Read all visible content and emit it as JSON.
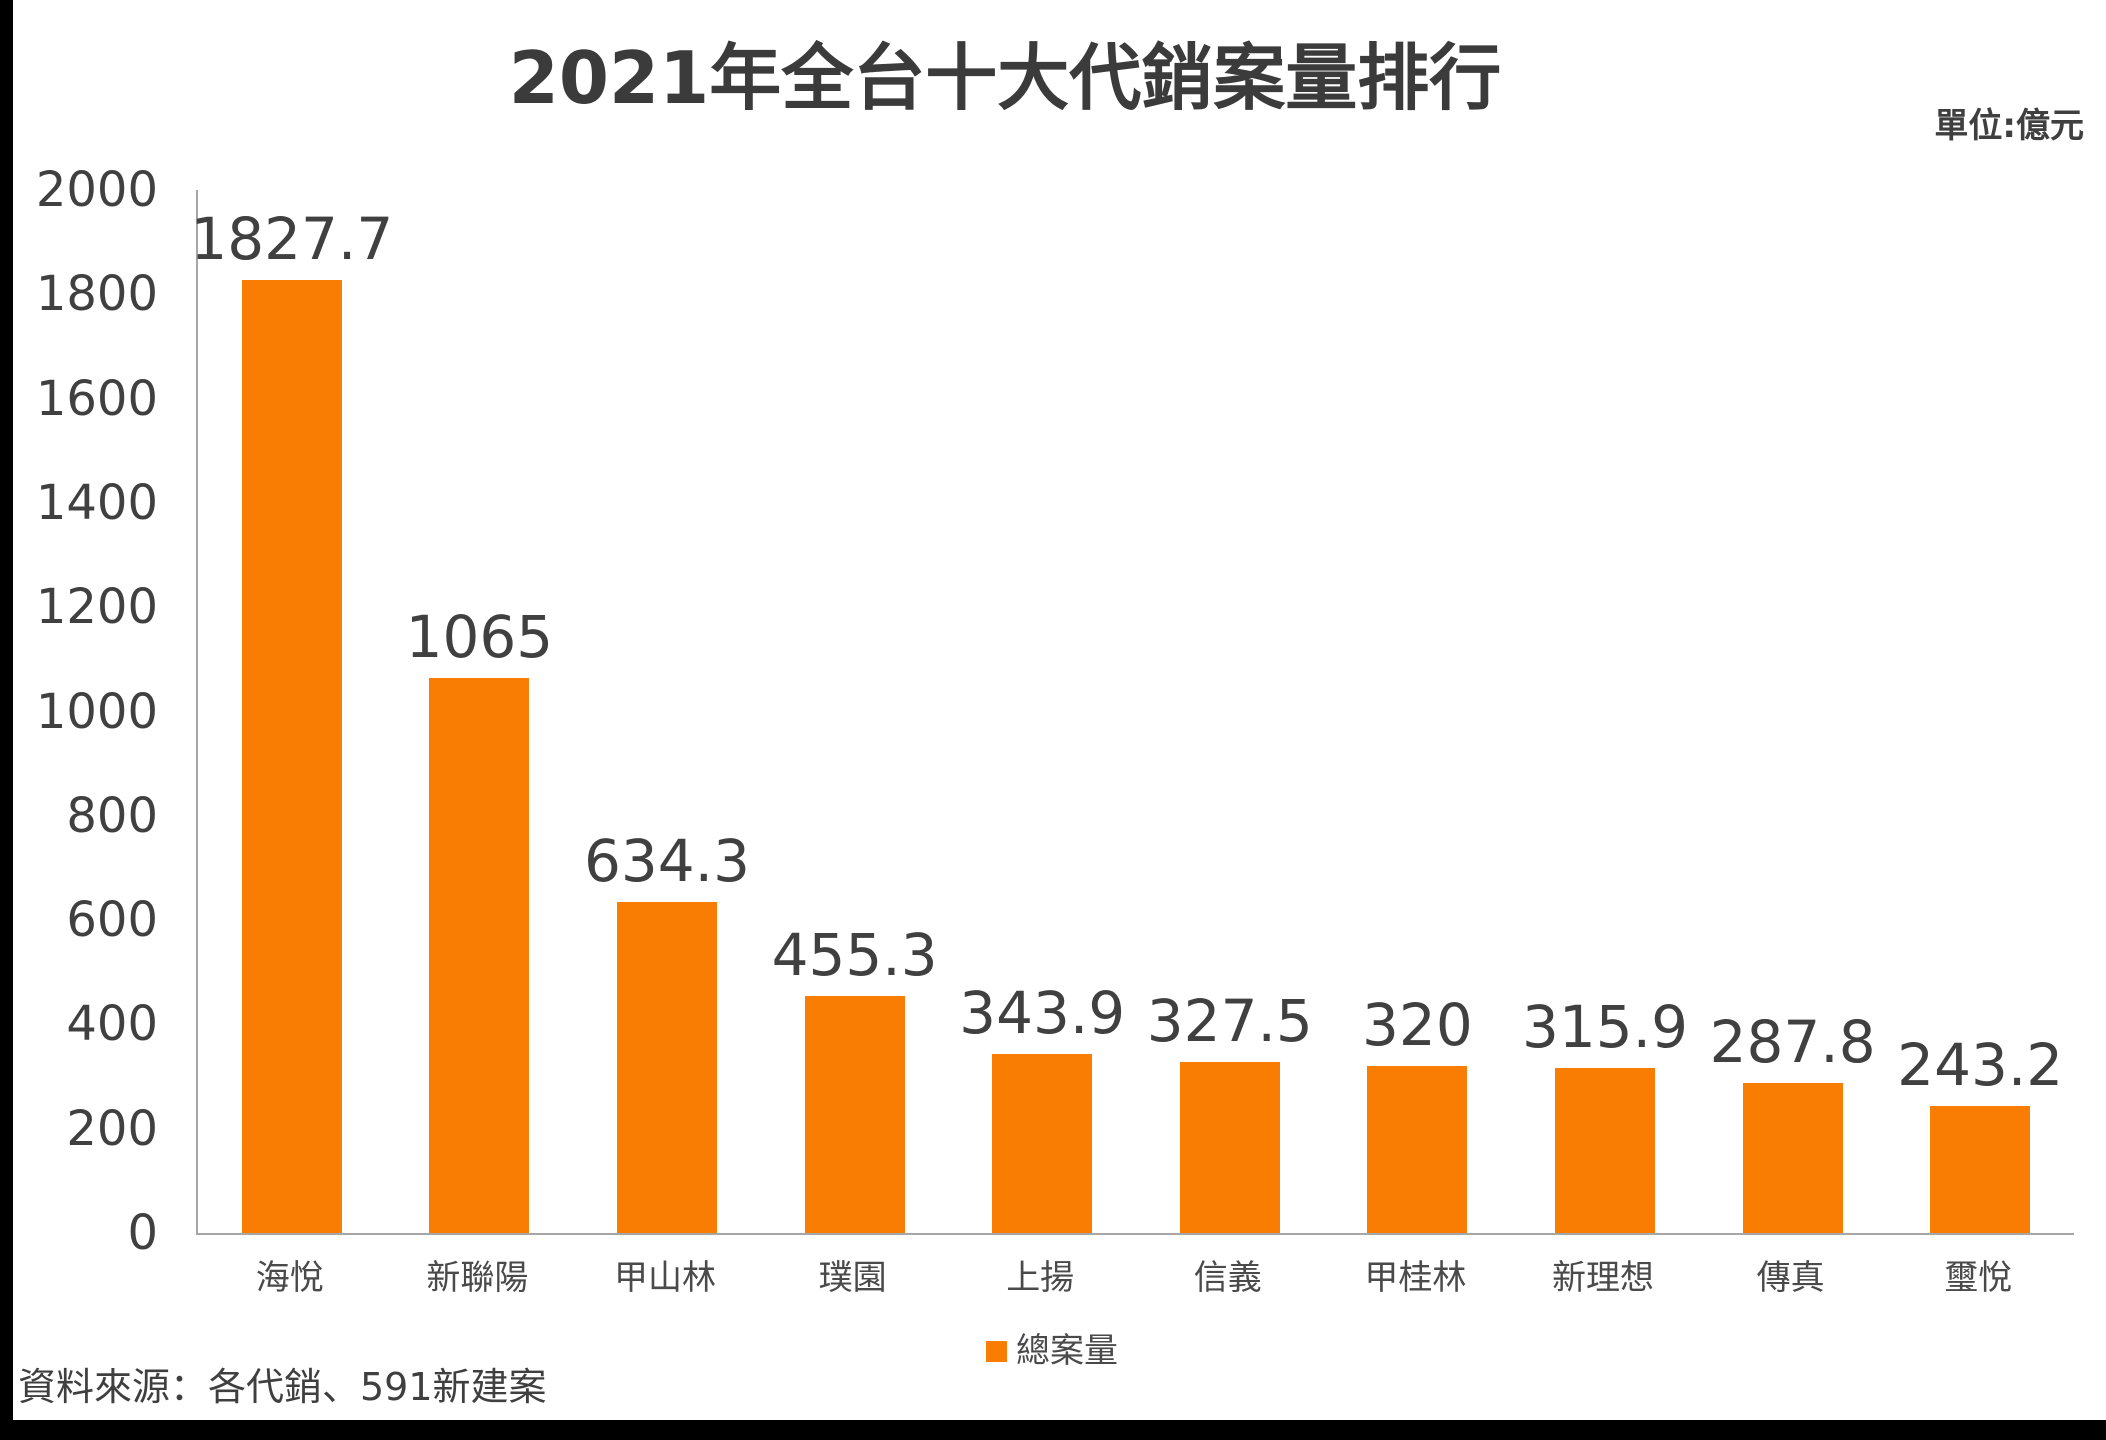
{
  "page": {
    "title": "2021年全台十大代銷案量排行",
    "unit_label": "單位:億元",
    "source": "資料來源：各代銷、591新建案"
  },
  "legend": {
    "label": "總案量",
    "color": "#fa7d03"
  },
  "chart_data": {
    "type": "bar",
    "title": "2021年全台十大代銷案量排行",
    "unit": "億元",
    "categories": [
      "海悅",
      "新聯陽",
      "甲山林",
      "璞園",
      "上揚",
      "信義",
      "甲桂林",
      "新理想",
      "傳真",
      "璽悅"
    ],
    "values": [
      1827.7,
      1065,
      634.3,
      455.3,
      343.9,
      327.5,
      320,
      315.9,
      287.8,
      243.2
    ],
    "value_labels": [
      "1827.7",
      "1065",
      "634.3",
      "455.3",
      "343.9",
      "327.5",
      "320",
      "315.9",
      "287.8",
      "243.2"
    ],
    "series_name": "總案量",
    "xlabel": "",
    "ylabel": "",
    "ylim": [
      0,
      2000
    ],
    "yticks": [
      2000,
      1800,
      1600,
      1400,
      1200,
      1000,
      800,
      600,
      400,
      200,
      0
    ],
    "grid": false,
    "legend_position": "bottom",
    "bar_color": "#fa7d03",
    "source": "資料來源：各代銷、591新建案"
  },
  "colors": {
    "bar": "#fa7d03",
    "text": "#404040",
    "axis": "#a6a6a6",
    "frame": "#000000"
  }
}
